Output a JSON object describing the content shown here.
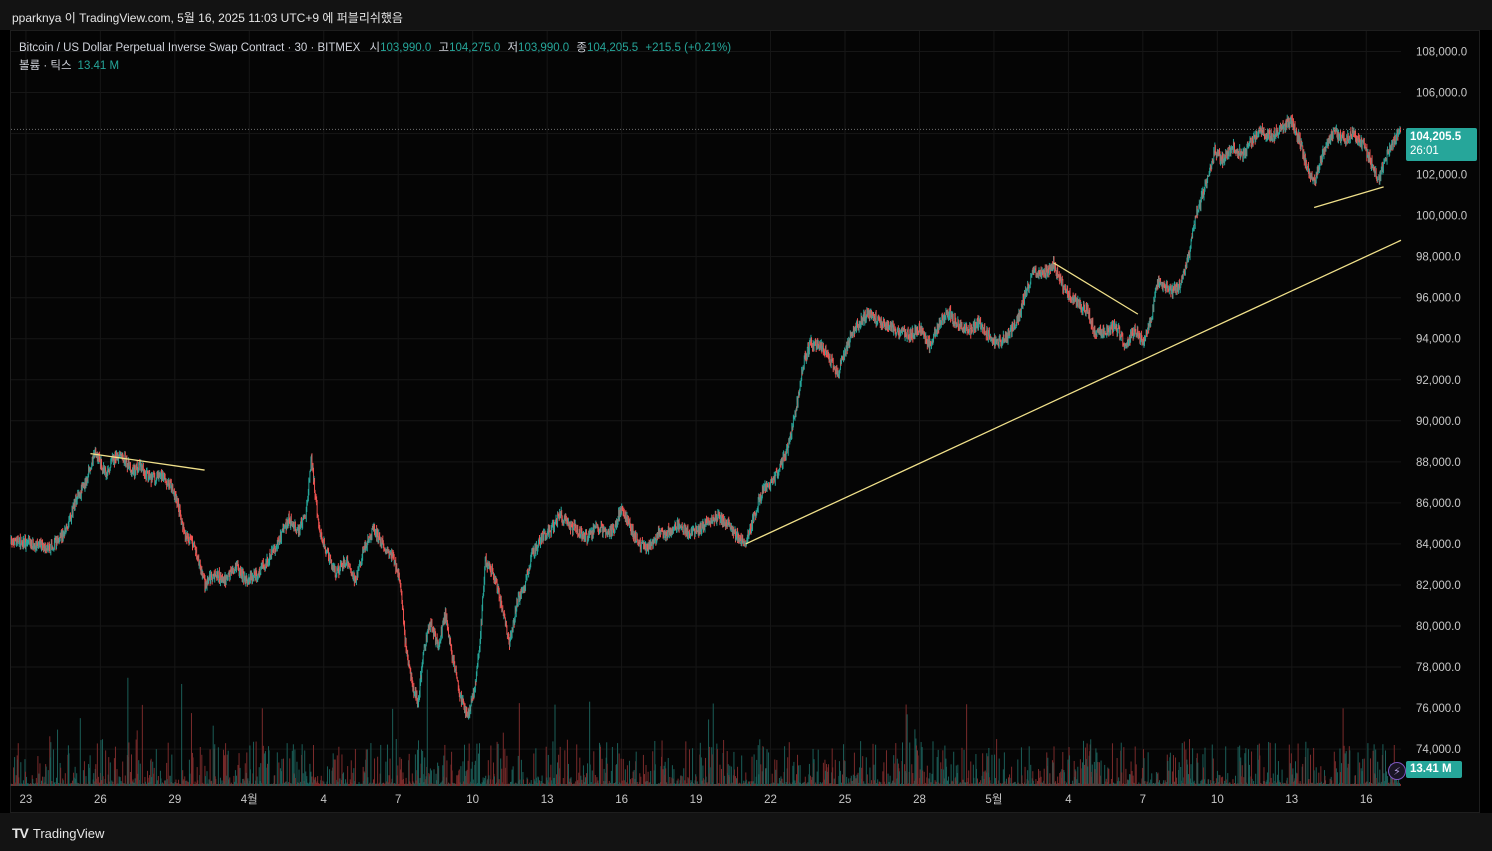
{
  "header": {
    "caption": "pparknya 이 TradingView.com, 5월 16, 2025 11:03 UTC+9 에 퍼블리쉬했음"
  },
  "legend": {
    "symbol": "Bitcoin / US Dollar Perpetual Inverse Swap Contract · 30 · BITMEX",
    "open_label": "시",
    "open": "103,990.0",
    "high_label": "고",
    "high": "104,275.0",
    "low_label": "저",
    "low": "103,990.0",
    "close_label": "종",
    "close": "104,205.5",
    "change": "+215.5 (+0.21%)",
    "volume_label": "볼륨 · 틱스",
    "volume": "13.41 M"
  },
  "price_tag": {
    "price": "104,205.5",
    "countdown": "26:01"
  },
  "volume_tag": {
    "value": "13.41 M"
  },
  "footer": {
    "brand": "TradingView",
    "logo": "TV"
  },
  "colors": {
    "up": "#26a69a",
    "down": "#ef5350",
    "trendline": "#f0e08a",
    "background": "#050505",
    "grid": "#161616"
  },
  "chart_data": {
    "type": "candlestick",
    "interval": "30",
    "y_ticks": [
      "74,000.0",
      "76,000.0",
      "78,000.0",
      "80,000.0",
      "82,000.0",
      "84,000.0",
      "86,000.0",
      "88,000.0",
      "90,000.0",
      "92,000.0",
      "94,000.0",
      "96,000.0",
      "98,000.0",
      "100,000.0",
      "102,000.0",
      "104,000.0",
      "106,000.0",
      "108,000.0"
    ],
    "y_tick_values": [
      74000,
      76000,
      78000,
      80000,
      82000,
      84000,
      86000,
      88000,
      90000,
      92000,
      94000,
      96000,
      98000,
      100000,
      102000,
      104000,
      106000,
      108000
    ],
    "ylim": [
      72200,
      109000
    ],
    "x_ticks": [
      "23",
      "26",
      "29",
      "4월",
      "4",
      "7",
      "10",
      "13",
      "16",
      "19",
      "22",
      "25",
      "28",
      "5월",
      "4",
      "7",
      "10",
      "13",
      "16"
    ],
    "x_tick_days": [
      0,
      3,
      6,
      9,
      12,
      15,
      18,
      21,
      24,
      27,
      30,
      33,
      36,
      39,
      42,
      45,
      48,
      51,
      54
    ],
    "x_range_days": [
      -0.6,
      55.4
    ],
    "last_price": 104205.5,
    "price_path": [
      [
        -0.6,
        84100
      ],
      [
        0.5,
        84000
      ],
      [
        1.0,
        83800
      ],
      [
        1.6,
        84600
      ],
      [
        2.0,
        86000
      ],
      [
        2.4,
        87000
      ],
      [
        2.8,
        88500
      ],
      [
        3.2,
        87400
      ],
      [
        3.5,
        88100
      ],
      [
        3.9,
        88300
      ],
      [
        4.3,
        87500
      ],
      [
        4.6,
        87800
      ],
      [
        5.0,
        87100
      ],
      [
        5.4,
        87300
      ],
      [
        5.8,
        87000
      ],
      [
        6.1,
        86100
      ],
      [
        6.4,
        84400
      ],
      [
        6.8,
        83900
      ],
      [
        7.2,
        82000
      ],
      [
        7.6,
        82600
      ],
      [
        8.0,
        82200
      ],
      [
        8.5,
        82800
      ],
      [
        8.9,
        82200
      ],
      [
        9.3,
        82500
      ],
      [
        9.8,
        83300
      ],
      [
        10.2,
        84200
      ],
      [
        10.6,
        85200
      ],
      [
        11.0,
        84600
      ],
      [
        11.3,
        85500
      ],
      [
        11.5,
        88200
      ],
      [
        11.8,
        84800
      ],
      [
        12.1,
        83700
      ],
      [
        12.5,
        82600
      ],
      [
        12.9,
        83200
      ],
      [
        13.3,
        82200
      ],
      [
        13.6,
        83700
      ],
      [
        14.0,
        84700
      ],
      [
        14.4,
        83900
      ],
      [
        14.8,
        83400
      ],
      [
        15.1,
        82000
      ],
      [
        15.3,
        79000
      ],
      [
        15.6,
        77000
      ],
      [
        15.8,
        76200
      ],
      [
        16.0,
        78600
      ],
      [
        16.3,
        80200
      ],
      [
        16.6,
        79000
      ],
      [
        16.9,
        80500
      ],
      [
        17.2,
        78400
      ],
      [
        17.5,
        76600
      ],
      [
        17.8,
        75600
      ],
      [
        18.1,
        77000
      ],
      [
        18.3,
        79200
      ],
      [
        18.5,
        83200
      ],
      [
        18.8,
        82600
      ],
      [
        19.0,
        81800
      ],
      [
        19.3,
        80200
      ],
      [
        19.5,
        79200
      ],
      [
        19.8,
        81200
      ],
      [
        20.1,
        82000
      ],
      [
        20.4,
        83500
      ],
      [
        20.8,
        84300
      ],
      [
        21.2,
        84700
      ],
      [
        21.5,
        85500
      ],
      [
        21.9,
        84900
      ],
      [
        22.2,
        84700
      ],
      [
        22.6,
        84300
      ],
      [
        23.0,
        84900
      ],
      [
        23.4,
        84500
      ],
      [
        23.7,
        84700
      ],
      [
        24.0,
        85800
      ],
      [
        24.3,
        84900
      ],
      [
        24.7,
        84000
      ],
      [
        25.1,
        83800
      ],
      [
        25.5,
        84500
      ],
      [
        25.9,
        84600
      ],
      [
        26.3,
        84900
      ],
      [
        26.7,
        84600
      ],
      [
        27.1,
        84700
      ],
      [
        27.5,
        85100
      ],
      [
        27.9,
        85300
      ],
      [
        28.3,
        84900
      ],
      [
        28.6,
        84400
      ],
      [
        29.0,
        84100
      ],
      [
        29.3,
        85200
      ],
      [
        29.7,
        86700
      ],
      [
        30.0,
        86900
      ],
      [
        30.3,
        87500
      ],
      [
        30.7,
        88700
      ],
      [
        31.0,
        90400
      ],
      [
        31.3,
        92700
      ],
      [
        31.6,
        93800
      ],
      [
        32.0,
        93600
      ],
      [
        32.3,
        93300
      ],
      [
        32.7,
        92300
      ],
      [
        33.0,
        93300
      ],
      [
        33.3,
        94400
      ],
      [
        33.7,
        94900
      ],
      [
        34.0,
        95300
      ],
      [
        34.4,
        94800
      ],
      [
        34.8,
        94600
      ],
      [
        35.2,
        94400
      ],
      [
        35.6,
        94100
      ],
      [
        36.0,
        94500
      ],
      [
        36.4,
        93700
      ],
      [
        36.8,
        94700
      ],
      [
        37.2,
        95300
      ],
      [
        37.6,
        94600
      ],
      [
        38.0,
        94400
      ],
      [
        38.4,
        94800
      ],
      [
        38.8,
        94100
      ],
      [
        39.2,
        93800
      ],
      [
        39.6,
        94200
      ],
      [
        40.0,
        95100
      ],
      [
        40.3,
        96300
      ],
      [
        40.6,
        97300
      ],
      [
        41.0,
        97100
      ],
      [
        41.4,
        97700
      ],
      [
        41.7,
        96800
      ],
      [
        42.0,
        96200
      ],
      [
        42.4,
        95700
      ],
      [
        42.8,
        95300
      ],
      [
        43.1,
        94200
      ],
      [
        43.5,
        94400
      ],
      [
        43.9,
        94600
      ],
      [
        44.3,
        93700
      ],
      [
        44.7,
        94400
      ],
      [
        45.0,
        93900
      ],
      [
        45.3,
        94800
      ],
      [
        45.6,
        96800
      ],
      [
        45.9,
        96600
      ],
      [
        46.2,
        96300
      ],
      [
        46.5,
        96600
      ],
      [
        46.9,
        98300
      ],
      [
        47.1,
        99800
      ],
      [
        47.3,
        100600
      ],
      [
        47.6,
        101800
      ],
      [
        47.9,
        103100
      ],
      [
        48.2,
        102700
      ],
      [
        48.6,
        103400
      ],
      [
        49.0,
        102900
      ],
      [
        49.4,
        103700
      ],
      [
        49.8,
        104100
      ],
      [
        50.2,
        103800
      ],
      [
        50.6,
        104300
      ],
      [
        51.0,
        104600
      ],
      [
        51.3,
        103700
      ],
      [
        51.6,
        102400
      ],
      [
        51.9,
        101600
      ],
      [
        52.3,
        103200
      ],
      [
        52.7,
        104100
      ],
      [
        53.1,
        103700
      ],
      [
        53.5,
        104000
      ],
      [
        53.9,
        103400
      ],
      [
        54.2,
        102600
      ],
      [
        54.5,
        101700
      ],
      [
        54.8,
        102800
      ],
      [
        55.1,
        103600
      ],
      [
        55.4,
        104205
      ]
    ],
    "trendlines": [
      {
        "from": [
          2.6,
          88400
        ],
        "to": [
          7.2,
          87600
        ]
      },
      {
        "from": [
          29.0,
          84000
        ],
        "to": [
          55.4,
          98800
        ]
      },
      {
        "from": [
          41.4,
          97700
        ],
        "to": [
          44.8,
          95200
        ]
      },
      {
        "from": [
          51.9,
          100400
        ],
        "to": [
          54.7,
          101400
        ]
      }
    ],
    "volume_last": "13.41 M"
  }
}
